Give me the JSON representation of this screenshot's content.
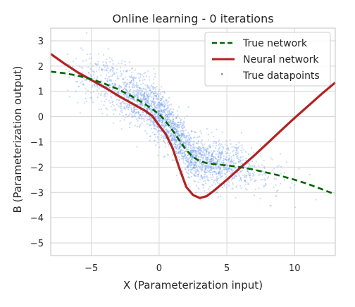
{
  "chart_data": {
    "type": "scatter",
    "title": "Online learning - 0 iterations",
    "xlabel": "X (Parameterization input)",
    "ylabel": "B (Parameterization output)",
    "xlim": [
      -8,
      13
    ],
    "ylim": [
      -5.5,
      3.5
    ],
    "xticks": [
      -5,
      0,
      5,
      10
    ],
    "yticks": [
      3,
      2,
      1,
      0,
      -1,
      -2,
      -3,
      -4,
      -5
    ],
    "grid": true,
    "legend_position": "top-right",
    "series": [
      {
        "name": "True network",
        "kind": "line",
        "style": "dashed",
        "color": "#006400",
        "x": [
          -8,
          -7,
          -6,
          -5,
          -4,
          -3,
          -2,
          -1,
          0,
          0.5,
          1,
          1.5,
          2,
          2.5,
          3,
          3.5,
          4,
          5,
          6,
          7,
          8,
          9,
          10,
          11,
          12,
          13
        ],
        "y": [
          1.78,
          1.72,
          1.62,
          1.48,
          1.3,
          1.08,
          0.8,
          0.48,
          0.1,
          -0.2,
          -0.55,
          -0.95,
          -1.32,
          -1.6,
          -1.76,
          -1.84,
          -1.88,
          -1.93,
          -2.0,
          -2.1,
          -2.22,
          -2.35,
          -2.5,
          -2.67,
          -2.87,
          -3.08
        ]
      },
      {
        "name": "Neural network",
        "kind": "line",
        "style": "solid",
        "color": "#b22222",
        "x": [
          -8,
          -7,
          -6,
          -5,
          -4,
          -3,
          -2,
          -1,
          -0.5,
          0,
          0.5,
          1,
          1.5,
          2,
          2.5,
          3,
          3.5,
          4,
          5,
          6,
          7,
          8,
          9,
          10,
          11,
          12,
          13
        ],
        "y": [
          2.48,
          2.1,
          1.75,
          1.45,
          1.15,
          0.82,
          0.52,
          0.22,
          0.02,
          -0.35,
          -0.7,
          -1.25,
          -2.05,
          -2.78,
          -3.1,
          -3.22,
          -3.15,
          -2.95,
          -2.5,
          -2.02,
          -1.55,
          -1.05,
          -0.55,
          -0.05,
          0.42,
          0.9,
          1.35
        ]
      },
      {
        "name": "True datapoints",
        "kind": "scatter",
        "color": "#6495ed",
        "note": "dense cloud of points scattered around the true network curve",
        "x_range": [
          -7,
          12
        ],
        "spread": 0.5
      }
    ]
  }
}
